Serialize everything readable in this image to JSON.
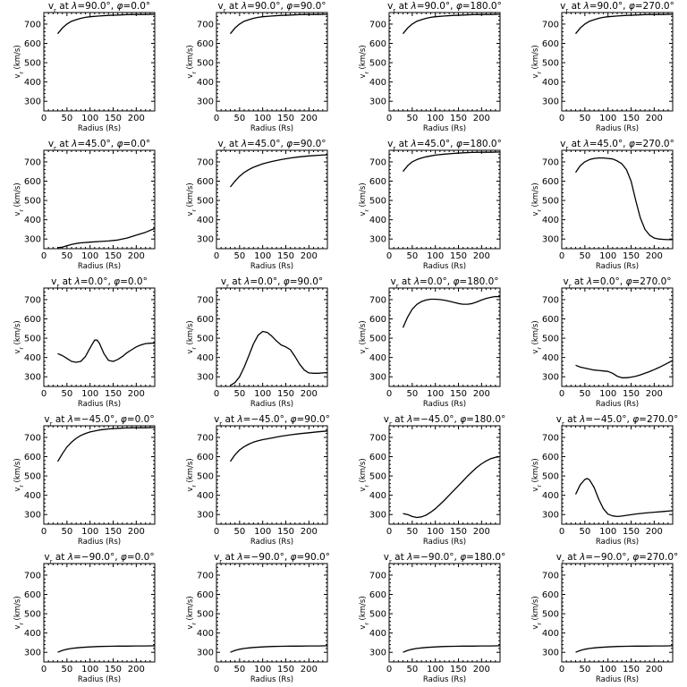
{
  "chart_data": [
    {
      "type": "line",
      "title": "v_r at λ=90.0°, φ=0.0°",
      "xlabel": "Radius (Rs)",
      "ylabel": "v_r (km/s)",
      "xlim": [
        0,
        240
      ],
      "ylim": [
        250,
        760
      ],
      "xticks": [
        0,
        50,
        100,
        150,
        200
      ],
      "yticks": [
        300,
        400,
        500,
        600,
        700
      ],
      "x": [
        30,
        40,
        50,
        60,
        70,
        80,
        90,
        100,
        120,
        140,
        160,
        180,
        200,
        220,
        240
      ],
      "y": [
        650,
        680,
        700,
        715,
        723,
        730,
        735,
        738,
        742,
        745,
        747,
        749,
        750,
        750,
        751
      ]
    },
    {
      "type": "line",
      "title": "v_r at λ=90.0°, φ=90.0°",
      "xlabel": "Radius (Rs)",
      "ylabel": "v_r (km/s)",
      "xlim": [
        0,
        240
      ],
      "ylim": [
        250,
        760
      ],
      "xticks": [
        0,
        50,
        100,
        150,
        200
      ],
      "yticks": [
        300,
        400,
        500,
        600,
        700
      ],
      "x": [
        30,
        40,
        50,
        60,
        70,
        80,
        90,
        100,
        120,
        140,
        160,
        180,
        200,
        220,
        240
      ],
      "y": [
        650,
        680,
        700,
        715,
        723,
        730,
        735,
        738,
        742,
        745,
        747,
        749,
        750,
        750,
        751
      ]
    },
    {
      "type": "line",
      "title": "v_r at λ=90.0°, φ=180.0°",
      "xlabel": "Radius (Rs)",
      "ylabel": "v_r (km/s)",
      "xlim": [
        0,
        240
      ],
      "ylim": [
        250,
        760
      ],
      "xticks": [
        0,
        50,
        100,
        150,
        200
      ],
      "yticks": [
        300,
        400,
        500,
        600,
        700
      ],
      "x": [
        30,
        40,
        50,
        60,
        70,
        80,
        90,
        100,
        120,
        140,
        160,
        180,
        200,
        220,
        240
      ],
      "y": [
        650,
        680,
        700,
        715,
        723,
        730,
        735,
        738,
        742,
        745,
        747,
        749,
        750,
        750,
        751
      ]
    },
    {
      "type": "line",
      "title": "v_r at λ=90.0°, φ=270.0°",
      "xlabel": "Radius (Rs)",
      "ylabel": "v_r (km/s)",
      "xlim": [
        0,
        240
      ],
      "ylim": [
        250,
        760
      ],
      "xticks": [
        0,
        50,
        100,
        150,
        200
      ],
      "yticks": [
        300,
        400,
        500,
        600,
        700
      ],
      "x": [
        30,
        40,
        50,
        60,
        70,
        80,
        90,
        100,
        120,
        140,
        160,
        180,
        200,
        220,
        240
      ],
      "y": [
        650,
        680,
        700,
        715,
        723,
        730,
        735,
        738,
        742,
        745,
        747,
        749,
        750,
        750,
        751
      ]
    },
    {
      "type": "line",
      "title": "v_r at λ=45.0°, φ=0.0°",
      "xlabel": "Radius (Rs)",
      "ylabel": "v_r (km/s)",
      "xlim": [
        0,
        240
      ],
      "ylim": [
        250,
        760
      ],
      "xticks": [
        0,
        50,
        100,
        150,
        200
      ],
      "yticks": [
        300,
        400,
        500,
        600,
        700
      ],
      "x": [
        30,
        40,
        50,
        60,
        70,
        80,
        100,
        120,
        140,
        160,
        180,
        200,
        220,
        240
      ],
      "y": [
        255,
        258,
        265,
        272,
        277,
        280,
        284,
        287,
        290,
        295,
        305,
        320,
        335,
        355
      ]
    },
    {
      "type": "line",
      "title": "v_r at λ=45.0°, φ=90.0°",
      "xlabel": "Radius (Rs)",
      "ylabel": "v_r (km/s)",
      "xlim": [
        0,
        240
      ],
      "ylim": [
        250,
        760
      ],
      "xticks": [
        0,
        50,
        100,
        150,
        200
      ],
      "yticks": [
        300,
        400,
        500,
        600,
        700
      ],
      "x": [
        30,
        40,
        50,
        60,
        70,
        80,
        100,
        120,
        140,
        160,
        180,
        200,
        220,
        240
      ],
      "y": [
        570,
        600,
        625,
        645,
        660,
        672,
        690,
        702,
        712,
        720,
        726,
        731,
        734,
        737
      ]
    },
    {
      "type": "line",
      "title": "v_r at λ=45.0°, φ=180.0°",
      "xlabel": "Radius (Rs)",
      "ylabel": "v_r (km/s)",
      "xlim": [
        0,
        240
      ],
      "ylim": [
        250,
        760
      ],
      "xticks": [
        0,
        50,
        100,
        150,
        200
      ],
      "yticks": [
        300,
        400,
        500,
        600,
        700
      ],
      "x": [
        30,
        40,
        50,
        60,
        70,
        80,
        90,
        100,
        120,
        140,
        160,
        180,
        200,
        220,
        240
      ],
      "y": [
        650,
        680,
        700,
        712,
        720,
        726,
        731,
        735,
        740,
        744,
        747,
        749,
        750,
        750,
        751
      ]
    },
    {
      "type": "line",
      "title": "v_r at λ=45.0°, φ=270.0°",
      "xlabel": "Radius (Rs)",
      "ylabel": "v_r (km/s)",
      "xlim": [
        0,
        240
      ],
      "ylim": [
        250,
        760
      ],
      "xticks": [
        0,
        50,
        100,
        150,
        200
      ],
      "yticks": [
        300,
        400,
        500,
        600,
        700
      ],
      "x": [
        30,
        40,
        50,
        60,
        70,
        80,
        90,
        100,
        110,
        120,
        130,
        140,
        150,
        160,
        170,
        180,
        190,
        200,
        210,
        220,
        230,
        240
      ],
      "y": [
        645,
        680,
        700,
        712,
        718,
        720,
        720,
        718,
        715,
        705,
        690,
        660,
        600,
        500,
        410,
        350,
        320,
        305,
        300,
        298,
        297,
        297
      ]
    },
    {
      "type": "line",
      "title": "v_r at λ=0.0°, φ=0.0°",
      "xlabel": "Radius (Rs)",
      "ylabel": "v_r (km/s)",
      "xlim": [
        0,
        240
      ],
      "ylim": [
        250,
        760
      ],
      "xticks": [
        0,
        50,
        100,
        150,
        200
      ],
      "yticks": [
        300,
        400,
        500,
        600,
        700
      ],
      "x": [
        30,
        40,
        50,
        60,
        70,
        80,
        90,
        100,
        110,
        115,
        120,
        130,
        140,
        150,
        160,
        170,
        180,
        190,
        200,
        210,
        220,
        230,
        240
      ],
      "y": [
        420,
        410,
        395,
        380,
        375,
        380,
        405,
        450,
        490,
        490,
        475,
        420,
        385,
        380,
        390,
        405,
        425,
        440,
        455,
        465,
        472,
        474,
        475
      ]
    },
    {
      "type": "line",
      "title": "v_r at λ=0.0°, φ=90.0°",
      "xlabel": "Radius (Rs)",
      "ylabel": "v_r (km/s)",
      "xlim": [
        0,
        240
      ],
      "ylim": [
        250,
        760
      ],
      "xticks": [
        0,
        50,
        100,
        150,
        200
      ],
      "yticks": [
        300,
        400,
        500,
        600,
        700
      ],
      "x": [
        30,
        40,
        50,
        60,
        70,
        80,
        90,
        100,
        110,
        120,
        130,
        140,
        150,
        160,
        170,
        180,
        190,
        200,
        210,
        220,
        230,
        240
      ],
      "y": [
        255,
        270,
        300,
        350,
        410,
        470,
        515,
        535,
        530,
        510,
        485,
        465,
        455,
        440,
        405,
        365,
        335,
        320,
        318,
        318,
        320,
        322
      ]
    },
    {
      "type": "line",
      "title": "v_r at λ=0.0°, φ=180.0°",
      "xlabel": "Radius (Rs)",
      "ylabel": "v_r (km/s)",
      "xlim": [
        0,
        240
      ],
      "ylim": [
        250,
        760
      ],
      "xticks": [
        0,
        50,
        100,
        150,
        200
      ],
      "yticks": [
        300,
        400,
        500,
        600,
        700
      ],
      "x": [
        30,
        40,
        50,
        60,
        70,
        80,
        90,
        100,
        110,
        120,
        130,
        140,
        150,
        160,
        170,
        180,
        190,
        200,
        210,
        220,
        230,
        240
      ],
      "y": [
        555,
        610,
        650,
        675,
        690,
        698,
        702,
        702,
        700,
        697,
        692,
        686,
        680,
        676,
        676,
        680,
        688,
        698,
        706,
        712,
        716,
        715
      ]
    },
    {
      "type": "line",
      "title": "v_r at λ=0.0°, φ=270.0°",
      "xlabel": "Radius (Rs)",
      "ylabel": "v_r (km/s)",
      "xlim": [
        0,
        240
      ],
      "ylim": [
        250,
        760
      ],
      "xticks": [
        0,
        50,
        100,
        150,
        200
      ],
      "yticks": [
        300,
        400,
        500,
        600,
        700
      ],
      "x": [
        30,
        40,
        50,
        60,
        70,
        80,
        90,
        100,
        110,
        120,
        130,
        140,
        150,
        160,
        170,
        180,
        190,
        200,
        210,
        220,
        230,
        240
      ],
      "y": [
        360,
        350,
        345,
        340,
        335,
        333,
        330,
        328,
        318,
        303,
        295,
        295,
        298,
        303,
        310,
        318,
        327,
        337,
        348,
        360,
        372,
        385
      ]
    },
    {
      "type": "line",
      "title": "v_r at λ=−45.0°, φ=0.0°",
      "xlabel": "Radius (Rs)",
      "ylabel": "v_r (km/s)",
      "xlim": [
        0,
        240
      ],
      "ylim": [
        250,
        760
      ],
      "xticks": [
        0,
        50,
        100,
        150,
        200
      ],
      "yticks": [
        300,
        400,
        500,
        600,
        700
      ],
      "x": [
        30,
        40,
        50,
        60,
        70,
        80,
        90,
        100,
        120,
        140,
        160,
        180,
        200,
        220,
        240
      ],
      "y": [
        575,
        615,
        650,
        675,
        695,
        710,
        720,
        728,
        738,
        744,
        747,
        749,
        750,
        750,
        751
      ]
    },
    {
      "type": "line",
      "title": "v_r at λ=−45.0°, φ=90.0°",
      "xlabel": "Radius (Rs)",
      "ylabel": "v_r (km/s)",
      "xlim": [
        0,
        240
      ],
      "ylim": [
        250,
        760
      ],
      "xticks": [
        0,
        50,
        100,
        150,
        200
      ],
      "yticks": [
        300,
        400,
        500,
        600,
        700
      ],
      "x": [
        30,
        40,
        50,
        60,
        70,
        80,
        90,
        100,
        120,
        140,
        160,
        180,
        200,
        220,
        240
      ],
      "y": [
        575,
        610,
        635,
        652,
        665,
        675,
        682,
        688,
        697,
        706,
        713,
        719,
        724,
        729,
        733
      ]
    },
    {
      "type": "line",
      "title": "v_r at λ=−45.0°, φ=180.0°",
      "xlabel": "Radius (Rs)",
      "ylabel": "v_r (km/s)",
      "xlim": [
        0,
        240
      ],
      "ylim": [
        250,
        760
      ],
      "xticks": [
        0,
        50,
        100,
        150,
        200
      ],
      "yticks": [
        300,
        400,
        500,
        600,
        700
      ],
      "x": [
        30,
        40,
        50,
        60,
        70,
        80,
        90,
        100,
        110,
        120,
        130,
        140,
        150,
        160,
        170,
        180,
        190,
        200,
        210,
        220,
        230,
        240
      ],
      "y": [
        305,
        300,
        290,
        285,
        288,
        297,
        312,
        330,
        352,
        375,
        400,
        425,
        450,
        475,
        500,
        523,
        545,
        563,
        578,
        590,
        597,
        600
      ]
    },
    {
      "type": "line",
      "title": "v_r at λ=−45.0°, φ=270.0°",
      "xlabel": "Radius (Rs)",
      "ylabel": "v_r (km/s)",
      "xlim": [
        0,
        240
      ],
      "ylim": [
        250,
        760
      ],
      "xticks": [
        0,
        50,
        100,
        150,
        200
      ],
      "yticks": [
        300,
        400,
        500,
        600,
        700
      ],
      "x": [
        30,
        40,
        50,
        55,
        60,
        70,
        80,
        90,
        100,
        110,
        120,
        130,
        140,
        160,
        180,
        200,
        220,
        240
      ],
      "y": [
        405,
        455,
        482,
        487,
        480,
        440,
        380,
        330,
        302,
        293,
        290,
        292,
        296,
        303,
        308,
        312,
        316,
        320
      ]
    },
    {
      "type": "line",
      "title": "v_r at λ=−90.0°, φ=0.0°",
      "xlabel": "Radius (Rs)",
      "ylabel": "v_r (km/s)",
      "xlim": [
        0,
        240
      ],
      "ylim": [
        250,
        760
      ],
      "xticks": [
        0,
        50,
        100,
        150,
        200
      ],
      "yticks": [
        300,
        400,
        500,
        600,
        700
      ],
      "x": [
        30,
        40,
        50,
        60,
        70,
        80,
        100,
        120,
        140,
        160,
        180,
        200,
        220,
        240
      ],
      "y": [
        300,
        310,
        316,
        320,
        323,
        325,
        328,
        330,
        331,
        332,
        332,
        333,
        333,
        334
      ]
    },
    {
      "type": "line",
      "title": "v_r at λ=−90.0°, φ=90.0°",
      "xlabel": "Radius (Rs)",
      "ylabel": "v_r (km/s)",
      "xlim": [
        0,
        240
      ],
      "ylim": [
        250,
        760
      ],
      "xticks": [
        0,
        50,
        100,
        150,
        200
      ],
      "yticks": [
        300,
        400,
        500,
        600,
        700
      ],
      "x": [
        30,
        40,
        50,
        60,
        70,
        80,
        100,
        120,
        140,
        160,
        180,
        200,
        220,
        240
      ],
      "y": [
        300,
        310,
        316,
        320,
        323,
        325,
        328,
        330,
        331,
        332,
        332,
        333,
        333,
        334
      ]
    },
    {
      "type": "line",
      "title": "v_r at λ=−90.0°, φ=180.0°",
      "xlabel": "Radius (Rs)",
      "ylabel": "v_r (km/s)",
      "xlim": [
        0,
        240
      ],
      "ylim": [
        250,
        760
      ],
      "xticks": [
        0,
        50,
        100,
        150,
        200
      ],
      "yticks": [
        300,
        400,
        500,
        600,
        700
      ],
      "x": [
        30,
        40,
        50,
        60,
        70,
        80,
        100,
        120,
        140,
        160,
        180,
        200,
        220,
        240
      ],
      "y": [
        300,
        310,
        316,
        320,
        323,
        325,
        328,
        330,
        331,
        332,
        332,
        333,
        333,
        334
      ]
    },
    {
      "type": "line",
      "title": "v_r at λ=−90.0°, φ=270.0°",
      "xlabel": "Radius (Rs)",
      "ylabel": "v_r (km/s)",
      "xlim": [
        0,
        240
      ],
      "ylim": [
        250,
        760
      ],
      "xticks": [
        0,
        50,
        100,
        150,
        200
      ],
      "yticks": [
        300,
        400,
        500,
        600,
        700
      ],
      "x": [
        30,
        40,
        50,
        60,
        70,
        80,
        100,
        120,
        140,
        160,
        180,
        200,
        220,
        240
      ],
      "y": [
        300,
        310,
        316,
        320,
        323,
        325,
        328,
        330,
        331,
        332,
        332,
        333,
        333,
        334
      ]
    }
  ]
}
